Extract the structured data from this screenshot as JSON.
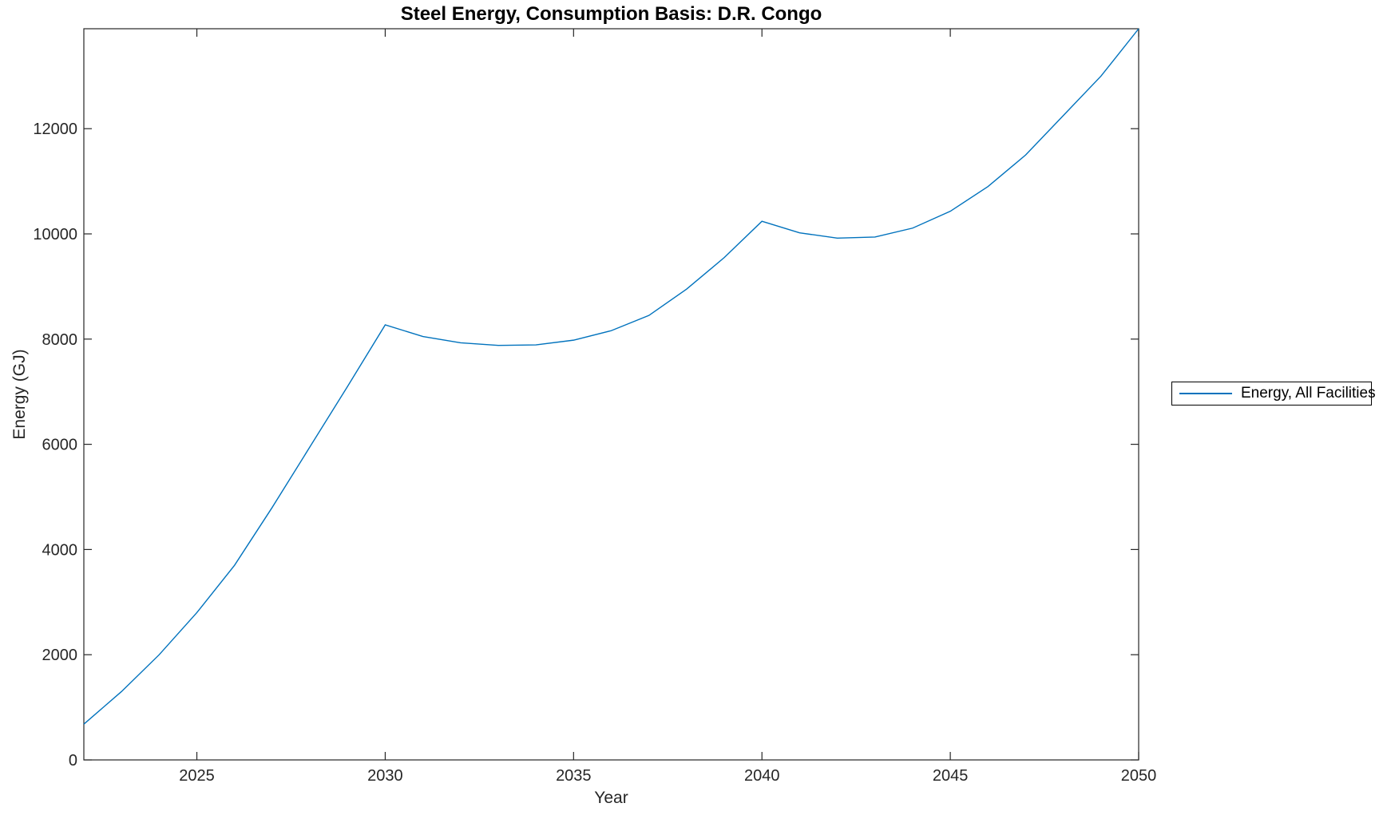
{
  "title": "Steel Energy, Consumption Basis: D.R. Congo",
  "legend": {
    "items": [
      {
        "label": "Energy, All Facilities",
        "color": "#0072BD"
      }
    ],
    "position": "right-outside"
  },
  "colors": {
    "line": "#0072BD",
    "axis": "#262626",
    "title_text": "#000000",
    "background": "#ffffff"
  },
  "chart_data": {
    "type": "line",
    "title": "Steel Energy, Consumption Basis: D.R. Congo",
    "xlabel": "Year",
    "ylabel": "Energy (GJ)",
    "xlim": [
      2022,
      2050
    ],
    "ylim": [
      0,
      13900
    ],
    "xticks": [
      2025,
      2030,
      2035,
      2040,
      2045,
      2050
    ],
    "yticks": [
      0,
      2000,
      4000,
      6000,
      8000,
      10000,
      12000
    ],
    "grid": false,
    "legend_position": "right-outside",
    "x": [
      2022,
      2023,
      2024,
      2025,
      2026,
      2027,
      2028,
      2029,
      2030,
      2031,
      2032,
      2033,
      2034,
      2035,
      2036,
      2037,
      2038,
      2039,
      2040,
      2041,
      2042,
      2043,
      2044,
      2045,
      2046,
      2047,
      2048,
      2049,
      2050
    ],
    "series": [
      {
        "name": "Energy, All Facilities",
        "color": "#0072BD",
        "values": [
          680,
          1300,
          2000,
          2800,
          3700,
          4800,
          5950,
          7100,
          8270,
          8050,
          7930,
          7880,
          7890,
          7980,
          8160,
          8450,
          8950,
          9550,
          10240,
          10020,
          9920,
          9940,
          10110,
          10430,
          10900,
          11500,
          12250,
          13000,
          13900
        ]
      }
    ]
  }
}
